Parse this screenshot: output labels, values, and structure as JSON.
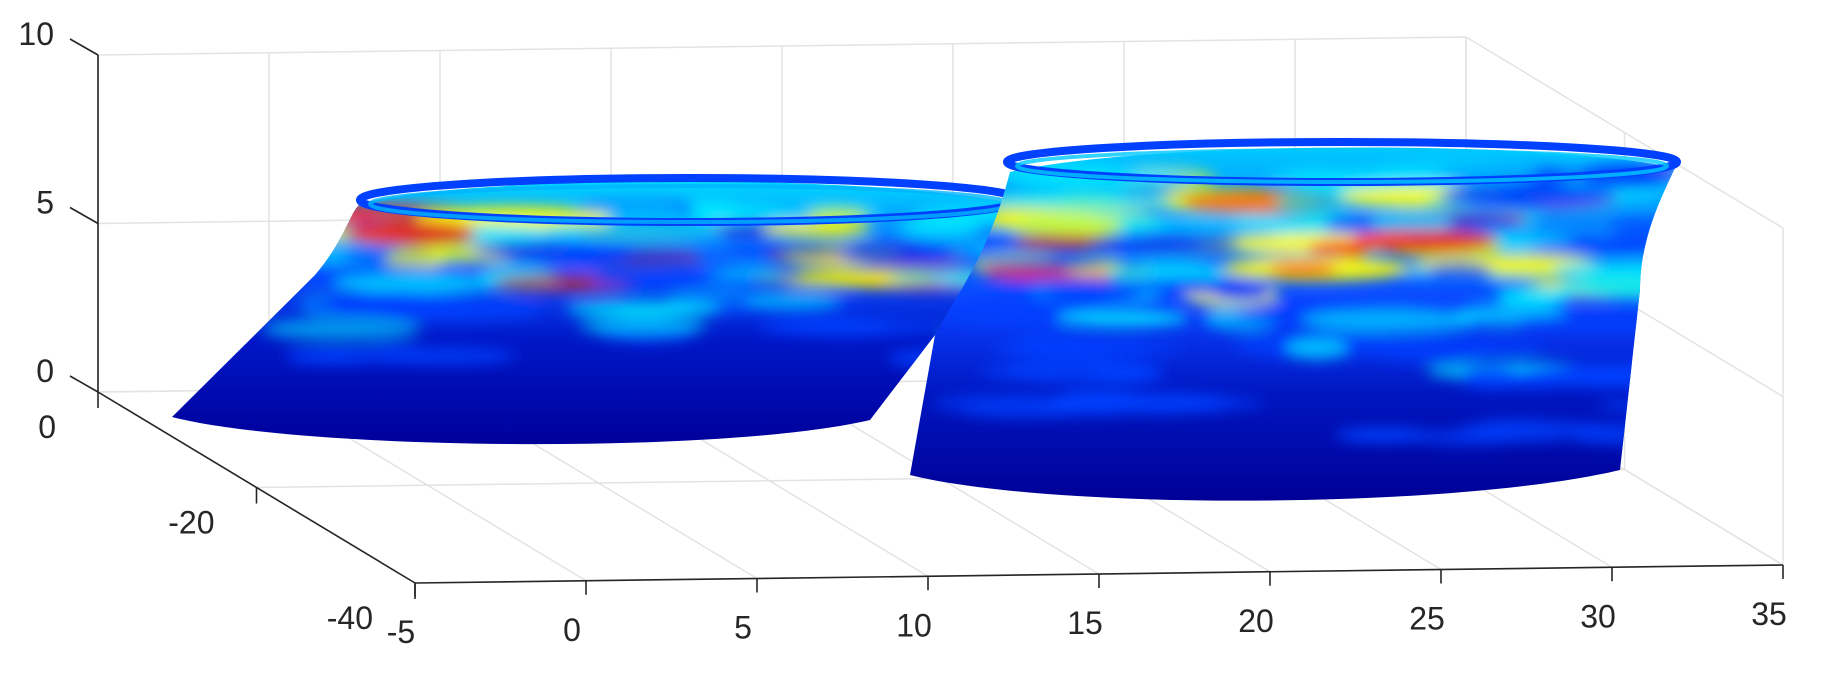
{
  "chart_data": {
    "type": "surface",
    "title": "",
    "xlabel": "",
    "ylabel": "",
    "zlabel": "",
    "colormap": "jet",
    "grid": true,
    "x_ticks": [
      "-5",
      "0",
      "5",
      "10",
      "15",
      "20",
      "25",
      "30",
      "35"
    ],
    "y_ticks": [
      "-40",
      "-20",
      "0"
    ],
    "z_ticks": [
      "0",
      "5",
      "10"
    ],
    "xlim": [
      -5,
      35
    ],
    "ylim": [
      -40,
      0
    ],
    "zlim": [
      0,
      10
    ],
    "surfaces": [
      {
        "name": "",
        "center_x": 7,
        "base_z": 0,
        "top_z": 5.2,
        "shape": "truncated cylinder (left)"
      },
      {
        "name": "",
        "center_x": 23,
        "base_z": -1.5,
        "top_z": 5.5,
        "shape": "truncated cylinder (right)"
      }
    ],
    "colors": {
      "low": "#00008f",
      "mid_low": "#0040ff",
      "mid": "#00e5ff",
      "mid_high": "#ffff00",
      "high": "#ff2000"
    }
  }
}
